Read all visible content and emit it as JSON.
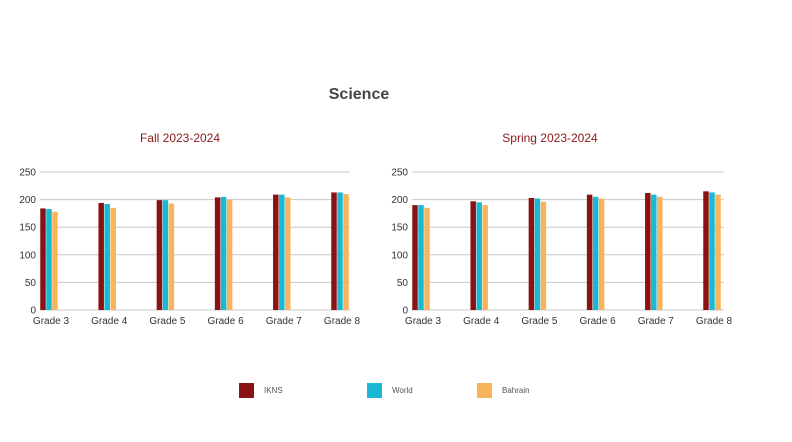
{
  "page_title": "Science",
  "colors": {
    "IKNS": "#8b1212",
    "World": "#1ab8d2",
    "Bahrain": "#f8b45c",
    "grid": "#c8c8c8"
  },
  "legend": [
    {
      "name": "IKNS",
      "color": "#8b1212"
    },
    {
      "name": "World",
      "color": "#1ab8d2"
    },
    {
      "name": "Bahrain",
      "color": "#f8b45c"
    }
  ],
  "chart_data": [
    {
      "type": "bar",
      "title": "Fall  2023-2024",
      "categories": [
        "Grade 3",
        "Grade 4",
        "Grade 5",
        "Grade 6",
        "Grade 7",
        "Grade 8"
      ],
      "ylim": [
        0,
        250
      ],
      "yticks": [
        0,
        50,
        100,
        150,
        200,
        250
      ],
      "grid": true,
      "series": [
        {
          "name": "IKNS",
          "values": [
            184,
            194,
            199,
            204,
            209,
            213
          ]
        },
        {
          "name": "World",
          "values": [
            183,
            192,
            199,
            205,
            209,
            213
          ]
        },
        {
          "name": "Bahrain",
          "values": [
            178,
            185,
            193,
            200,
            204,
            210
          ]
        }
      ]
    },
    {
      "type": "bar",
      "title": "Spring  2023-2024",
      "categories": [
        "Grade 3",
        "Grade 4",
        "Grade 5",
        "Grade 6",
        "Grade 7",
        "Grade 8"
      ],
      "ylim": [
        0,
        250
      ],
      "yticks": [
        0,
        50,
        100,
        150,
        200,
        250
      ],
      "grid": true,
      "series": [
        {
          "name": "IKNS",
          "values": [
            190,
            197,
            203,
            209,
            212,
            215
          ]
        },
        {
          "name": "World",
          "values": [
            190,
            195,
            202,
            205,
            209,
            213
          ]
        },
        {
          "name": "Bahrain",
          "values": [
            185,
            190,
            196,
            202,
            205,
            209
          ]
        }
      ]
    }
  ]
}
